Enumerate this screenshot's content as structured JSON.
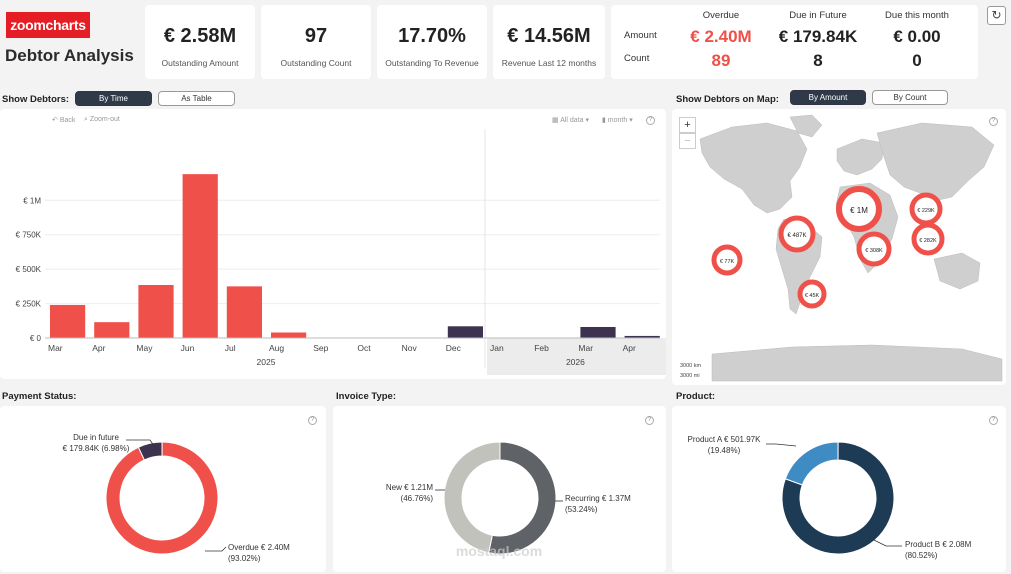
{
  "brand": "zoomcharts",
  "title": "Debtor Analysis",
  "kpis": [
    {
      "value": "€ 2.58M",
      "label": "Outstanding Amount"
    },
    {
      "value": "97",
      "label": "Outstanding Count"
    },
    {
      "value": "17.70%",
      "label": "Outstanding To Revenue"
    },
    {
      "value": "€ 14.56M",
      "label": "Revenue Last 12 months"
    }
  ],
  "summary": {
    "headers": [
      "Overdue",
      "Due in Future",
      "Due this month"
    ],
    "row_labels": [
      "Amount",
      "Count"
    ],
    "amount": [
      "€ 2.40M",
      "€ 179.84K",
      "€ 0.00"
    ],
    "count": [
      "89",
      "8",
      "0"
    ]
  },
  "show_debtors": {
    "label": "Show Debtors:",
    "by_time": "By Time",
    "as_table": "As Table"
  },
  "map_section": {
    "label": "Show Debtors on Map:",
    "by_amount": "By Amount",
    "by_count": "By Count",
    "bubbles": [
      "€ 1M",
      "€ 487K",
      "€ 229K",
      "€ 308K",
      "€ 282K",
      "€ 77K",
      "€ 45K"
    ],
    "scale": [
      "3000 km",
      "3000 mi"
    ]
  },
  "toolbar": {
    "back": "Back",
    "zoom_out": "Zoom-out",
    "all_data": "All data",
    "month": "month"
  },
  "chart_data": {
    "type": "bar",
    "categories": [
      "Mar",
      "Apr",
      "May",
      "Jun",
      "Jul",
      "Aug",
      "Sep",
      "Oct",
      "Nov",
      "Dec",
      "Jan",
      "Feb",
      "Mar",
      "Apr"
    ],
    "years": [
      {
        "label": "2025"
      },
      {
        "label": "2026"
      }
    ],
    "series": [
      {
        "name": "Overdue",
        "color": "#f0504a",
        "values": [
          240000,
          115000,
          385000,
          1190000,
          375000,
          40000,
          0,
          0,
          0,
          0,
          0,
          0,
          0,
          0
        ]
      },
      {
        "name": "Due in Future",
        "color": "#3d3350",
        "values": [
          0,
          0,
          0,
          0,
          0,
          0,
          0,
          0,
          0,
          85000,
          0,
          0,
          80000,
          15000
        ]
      }
    ],
    "ytick_labels": [
      "€ 0",
      "€ 250K",
      "€ 500K",
      "€ 750K",
      "€ 1M"
    ],
    "yticks": [
      0,
      250000,
      500000,
      750000,
      1000000
    ],
    "ylim": [
      0,
      1300000
    ]
  },
  "payment_status": {
    "label": "Payment Status:",
    "slices": [
      {
        "name": "Overdue",
        "value_text": "€ 2.40M",
        "pct_text": "(93.02%)",
        "pct": 93.02,
        "color": "#f0504a"
      },
      {
        "name": "Due in future",
        "value_text": "€ 179.84K",
        "pct_text": "(6.98%)",
        "pct": 6.98,
        "color": "#3d3350"
      }
    ],
    "labels": {
      "overdue_1": "Overdue € 2.40M",
      "overdue_2": "(93.02%)",
      "future_1": "Due in future",
      "future_2": "€ 179.84K (6.98%)"
    }
  },
  "invoice_type": {
    "label": "Invoice Type:",
    "slices": [
      {
        "name": "Recurring",
        "value_text": "€ 1.37M",
        "pct": 53.24,
        "color": "#5f6266"
      },
      {
        "name": "New",
        "value_text": "€ 1.21M",
        "pct": 46.76,
        "color": "#c2c2bd"
      }
    ],
    "labels": {
      "rec_1": "Recurring € 1.37M",
      "rec_2": "(53.24%)",
      "new_1": "New € 1.21M",
      "new_2": "(46.76%)"
    }
  },
  "product": {
    "label": "Product:",
    "slices": [
      {
        "name": "Product B",
        "value_text": "€ 2.08M",
        "pct": 80.52,
        "color": "#1e3b55"
      },
      {
        "name": "Product A",
        "value_text": "€ 501.97K",
        "pct": 19.48,
        "color": "#3f8bc4"
      }
    ],
    "labels": {
      "b_1": "Product B € 2.08M",
      "b_2": "(80.52%)",
      "a_1": "Product A € 501.97K",
      "a_2": "(19.48%)"
    }
  },
  "watermark": "mostaql.com"
}
